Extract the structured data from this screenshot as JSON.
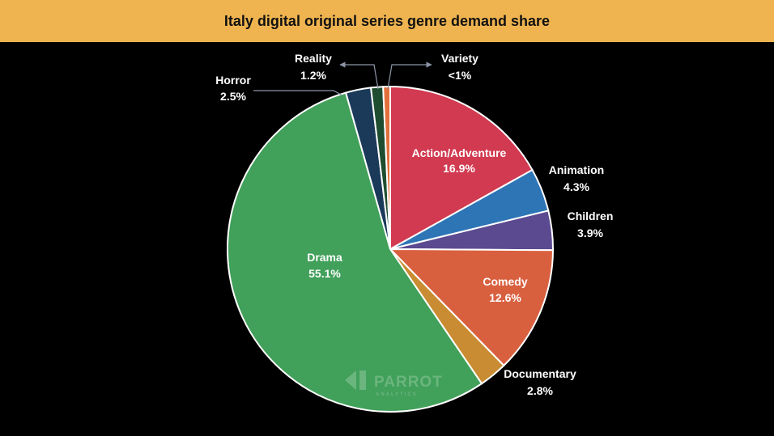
{
  "colors": {
    "title_bar_bg": "#EFB44F",
    "background": "#000000",
    "leader_line": "#8C95A6"
  },
  "watermark": {
    "brand": "PARROT",
    "sub": "ANALYTICS",
    "icon": "parrot-logo-icon"
  },
  "chart_data": {
    "type": "pie",
    "title": "Italy digital original series genre demand share",
    "start_angle_deg": 0,
    "direction": "clockwise",
    "slices": [
      {
        "label": "Action/Adventure",
        "value": 16.9,
        "display": "16.9%",
        "color": "#D13A50",
        "label_color": "#FFFFFF"
      },
      {
        "label": "Animation",
        "value": 4.3,
        "display": "4.3%",
        "color": "#2E75B6",
        "label_color": "#FFFFFF"
      },
      {
        "label": "Children",
        "value": 3.9,
        "display": "3.9%",
        "color": "#5B4A90",
        "label_color": "#FFFFFF"
      },
      {
        "label": "Comedy",
        "value": 12.6,
        "display": "12.6%",
        "color": "#D9603F",
        "label_color": "#FFFFFF"
      },
      {
        "label": "Documentary",
        "value": 2.8,
        "display": "2.8%",
        "color": "#C98C32",
        "label_color": "#FFFFFF"
      },
      {
        "label": "Drama",
        "value": 55.1,
        "display": "55.1%",
        "color": "#41A05A",
        "label_color": "#FFFFFF"
      },
      {
        "label": "Horror",
        "value": 2.5,
        "display": "2.5%",
        "color": "#1B3A5A",
        "label_color": "#FFFFFF"
      },
      {
        "label": "Reality",
        "value": 1.2,
        "display": "1.2%",
        "color": "#1E4D30",
        "label_color": "#FFFFFF"
      },
      {
        "label": "Variety",
        "value": 0.7,
        "display": "<1%",
        "color": "#E2703C",
        "label_color": "#FFFFFF"
      }
    ]
  }
}
